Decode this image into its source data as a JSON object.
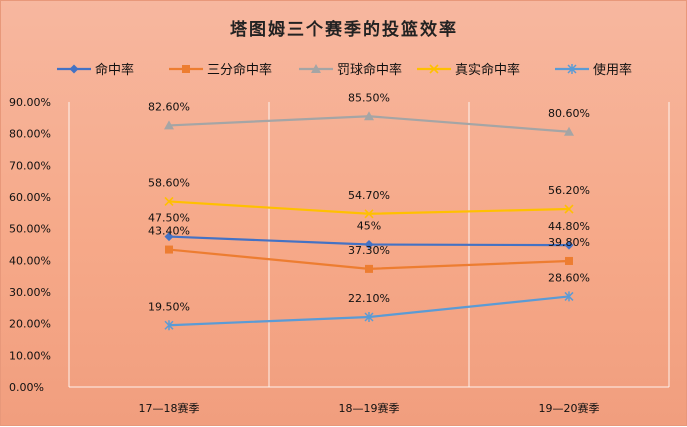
{
  "chart_data": {
    "type": "line",
    "title": "塔图姆三个赛季的投篮效率",
    "categories": [
      "17—18赛季",
      "18—19赛季",
      "19—20赛季"
    ],
    "ylim": [
      0,
      90
    ],
    "yticks": [
      "0.00%",
      "10.00%",
      "20.00%",
      "30.00%",
      "40.00%",
      "50.00%",
      "60.00%",
      "70.00%",
      "80.00%",
      "90.00%"
    ],
    "grid": true,
    "legend_position": "top",
    "series": [
      {
        "name": "命中率",
        "values": [
          47.5,
          45,
          44.8
        ],
        "labels": [
          "47.50%",
          "45%",
          "44.80%"
        ],
        "color": "#4472c4",
        "marker": "diamond"
      },
      {
        "name": "三分命中率",
        "values": [
          43.4,
          37.3,
          39.8
        ],
        "labels": [
          "43.40%",
          "37.30%",
          "39.80%"
        ],
        "color": "#ed7d31",
        "marker": "square"
      },
      {
        "name": "罚球命中率",
        "values": [
          82.6,
          85.5,
          80.6
        ],
        "labels": [
          "82.60%",
          "85.50%",
          "80.60%"
        ],
        "color": "#a5a5a5",
        "marker": "triangle"
      },
      {
        "name": "真实命中率",
        "values": [
          58.6,
          54.7,
          56.2
        ],
        "labels": [
          "58.60%",
          "54.70%",
          "56.20%"
        ],
        "color": "#ffc000",
        "marker": "x"
      },
      {
        "name": "使用率",
        "values": [
          19.5,
          22.1,
          28.6
        ],
        "labels": [
          "19.50%",
          "22.10%",
          "28.60%"
        ],
        "color": "#5b9bd5",
        "marker": "star"
      }
    ]
  }
}
